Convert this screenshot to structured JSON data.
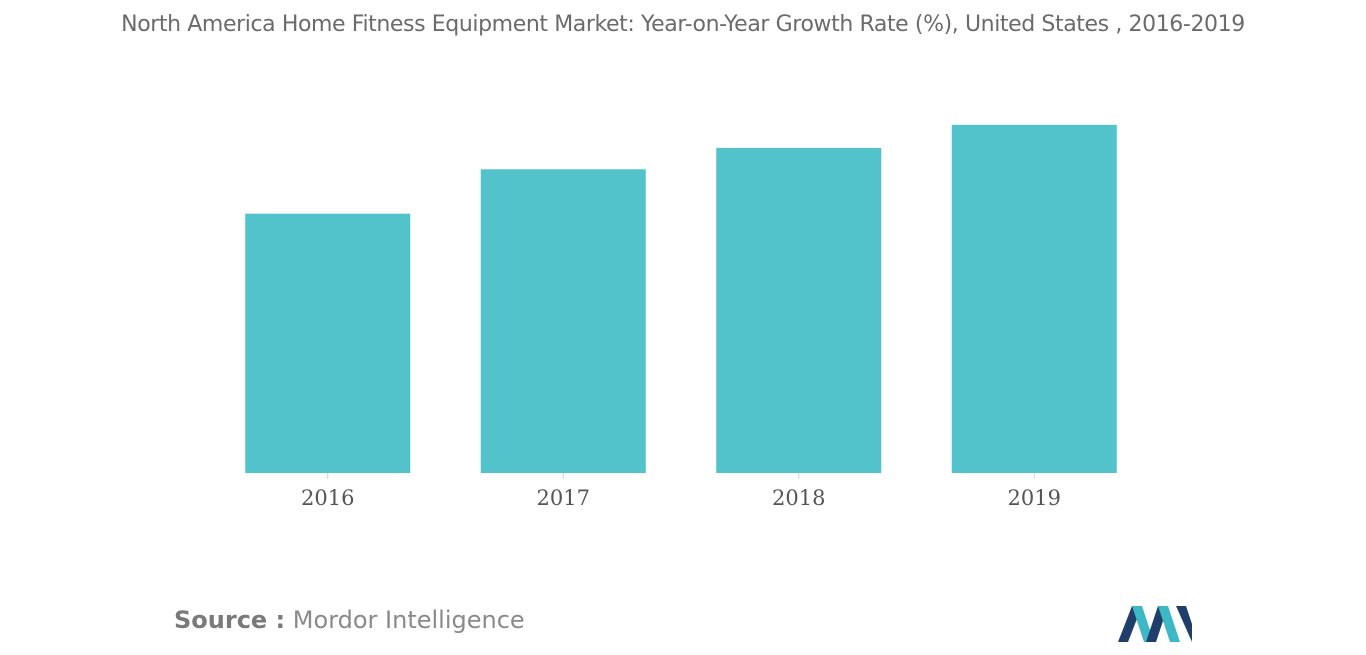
{
  "title": "North America Home Fitness Equipment Market: Year-on-Year Growth Rate (%), United States , 2016-2019",
  "source": {
    "label": "Source :",
    "text": "Mordor Intelligence"
  },
  "colors": {
    "bar": "#52c3cb",
    "axis": "#d0d0d0",
    "tick_text": "#555555",
    "logo_dark": "#1f3e6b",
    "logo_teal": "#3fb8c6"
  },
  "logo_icon": "mordor-intelligence-logo-icon",
  "chart_data": {
    "type": "bar",
    "title": "North America Home Fitness Equipment Market: Year-on-Year Growth Rate (%), United States , 2016-2019",
    "categories": [
      "2016",
      "2017",
      "2018",
      "2019"
    ],
    "values": [
      7.3,
      8.55,
      9.15,
      9.8
    ],
    "xlabel": "",
    "ylabel": "",
    "ylim": [
      0,
      10.5
    ],
    "grid": false,
    "legend": "none"
  }
}
